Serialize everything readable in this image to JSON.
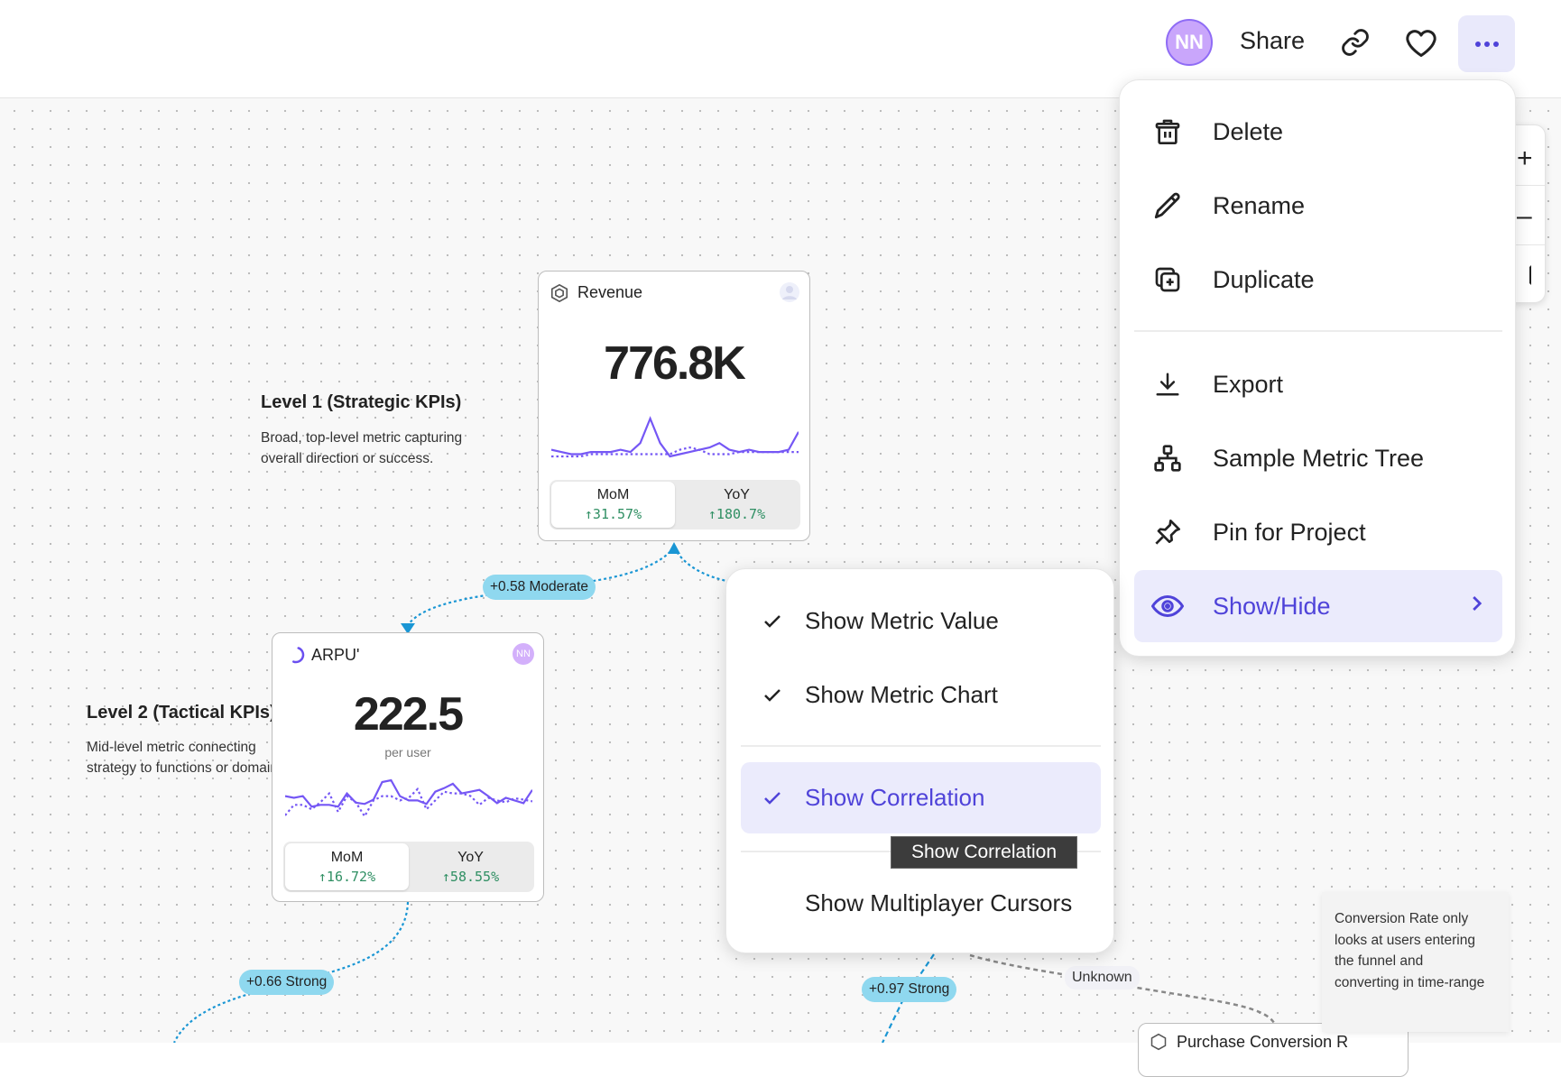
{
  "topbar": {
    "avatar_initials": "NN",
    "share_label": "Share",
    "link_icon": "link-icon",
    "favorite_icon": "heart-icon",
    "more_icon": "more-horizontal-icon"
  },
  "menu": {
    "items": [
      {
        "label": "Delete",
        "icon": "trash-icon"
      },
      {
        "label": "Rename",
        "icon": "pencil-icon"
      },
      {
        "label": "Duplicate",
        "icon": "duplicate-icon"
      },
      {
        "label": "Export",
        "icon": "download-icon"
      },
      {
        "label": "Sample Metric Tree",
        "icon": "hierarchy-icon"
      },
      {
        "label": "Pin for Project",
        "icon": "pin-icon"
      },
      {
        "label": "Show/Hide",
        "icon": "eye-icon",
        "active": true
      }
    ]
  },
  "submenu": {
    "items": [
      {
        "label": "Show Metric Value",
        "checked": true
      },
      {
        "label": "Show Metric Chart",
        "checked": true
      },
      {
        "label": "Show Correlation",
        "checked": true,
        "active": true
      },
      {
        "label": "Show Multiplayer Cursors",
        "checked": false
      }
    ],
    "tooltip": "Show Correlation"
  },
  "levels": [
    {
      "title": "Level 1 (Strategic KPIs)",
      "desc_lines": [
        "Broad, top-level metric capturing",
        "overall direction or success."
      ]
    },
    {
      "title": "Level 2 (Tactical KPIs)",
      "desc_lines": [
        "Mid-level metric connecting",
        "strategy to functions or domains."
      ]
    }
  ],
  "cards": {
    "revenue": {
      "title": "Revenue",
      "value": "776.8K",
      "mom_label": "MoM",
      "mom": "31.57%",
      "yoy_label": "YoY",
      "yoy": "180.7%",
      "series_solid": [
        3,
        2.5,
        2,
        2,
        2.5,
        2.5,
        2.5,
        3,
        2.5,
        4.5,
        10,
        4.5,
        1.5,
        2,
        2.5,
        3,
        3.5,
        4.5,
        3,
        2.5,
        3,
        2.5,
        2.5,
        2.5,
        3,
        7
      ],
      "series_dotted": [
        1.5,
        1.5,
        1.5,
        1.5,
        2,
        2,
        2,
        2,
        2,
        2,
        2,
        2,
        2,
        3,
        3.5,
        3,
        2,
        2,
        2,
        2.5,
        2.5,
        2.5,
        2.5,
        2.5,
        2.5,
        2.5
      ]
    },
    "arpu": {
      "title": "ARPU'",
      "value": "222.5",
      "unit": "per user",
      "badge": "NN",
      "mom_label": "MoM",
      "mom": "16.72%",
      "yoy_label": "YoY",
      "yoy": "58.55%",
      "series_solid": [
        5,
        4.6,
        5,
        2.6,
        3,
        3,
        2.6,
        5.6,
        3.5,
        3.2,
        4.2,
        8.2,
        8.6,
        5,
        4,
        4,
        3.2,
        6,
        6.8,
        7.8,
        5.6,
        6,
        6.4,
        5,
        3.4,
        4.6,
        4,
        3.4,
        6.4
      ],
      "series_dotted": [
        0.6,
        3,
        3,
        2,
        3.6,
        5.6,
        1.4,
        5,
        3.6,
        0.4,
        4,
        5,
        5,
        4,
        4.6,
        6.6,
        2,
        4,
        6,
        5.6,
        5.6,
        5,
        3,
        4.6,
        4,
        3.6,
        4.5,
        4.2,
        3.8
      ]
    },
    "purchase": {
      "title": "Purchase Conversion R"
    }
  },
  "edges": [
    {
      "label": "+0.58 Moderate"
    },
    {
      "label": "+0.66 Strong"
    },
    {
      "label": "+0.97 Strong"
    },
    {
      "label": "Unknown"
    }
  ],
  "note": {
    "lines": [
      "Conversion Rate only",
      "looks at users entering",
      "the funnel and",
      "converting in time-range"
    ]
  },
  "colors": {
    "accent": "#4f43d9",
    "chart_line": "#7557f5",
    "positive": "#2f8f63",
    "edge": "#1a96d4",
    "edge_label_bg": "#8fd8ef"
  }
}
